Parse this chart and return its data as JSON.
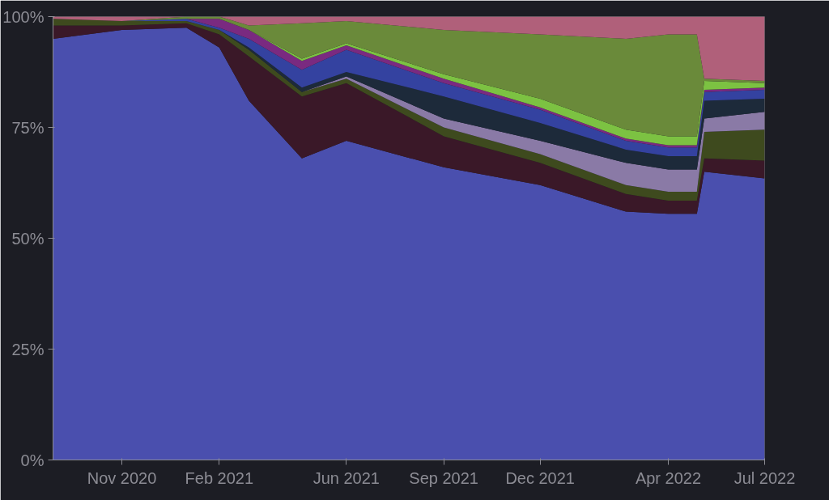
{
  "chart_data": {
    "type": "area",
    "stacked": true,
    "x": [
      "2020-08-28",
      "2020-11-01",
      "2021-01-01",
      "2021-02-01",
      "2021-03-01",
      "2021-04-20",
      "2021-06-01",
      "2021-09-01",
      "2021-12-01",
      "2022-02-20",
      "2022-04-01",
      "2022-04-28",
      "2022-05-05",
      "2022-07-01"
    ],
    "xlim": [
      "2020-08-28",
      "2022-07-01"
    ],
    "xticks": [
      {
        "value": "2020-11-01",
        "label": "Nov 2020"
      },
      {
        "value": "2021-02-01",
        "label": "Feb 2021"
      },
      {
        "value": "2021-06-01",
        "label": "Jun 2021"
      },
      {
        "value": "2021-09-01",
        "label": "Sep 2021"
      },
      {
        "value": "2021-12-01",
        "label": "Dec 2021"
      },
      {
        "value": "2022-04-01",
        "label": "Apr 2022"
      },
      {
        "value": "2022-07-01",
        "label": "Jul 2022"
      }
    ],
    "ylim": [
      0,
      100
    ],
    "yticks": [
      {
        "value": 0,
        "label": "0%"
      },
      {
        "value": 25,
        "label": "25%"
      },
      {
        "value": 50,
        "label": "50%"
      },
      {
        "value": 75,
        "label": "75%"
      },
      {
        "value": 100,
        "label": "100%"
      }
    ],
    "series": [
      {
        "color": "#4a4fae",
        "values": [
          95,
          97,
          97.5,
          93,
          81,
          68,
          72,
          66,
          62,
          56,
          55.5,
          55.5,
          65,
          63.5
        ]
      },
      {
        "color": "#3a1828",
        "values": [
          3,
          1,
          1,
          3,
          10,
          14,
          13,
          7,
          5,
          4,
          3,
          3,
          3,
          4
        ]
      },
      {
        "color": "#3e4a1e",
        "values": [
          1.5,
          1,
          0.5,
          1,
          1.5,
          1,
          1,
          2,
          2,
          2,
          2,
          2,
          6,
          7
        ]
      },
      {
        "color": "#8a7aa6",
        "values": [
          0,
          0,
          0,
          0,
          0,
          0,
          0.5,
          2,
          3,
          5,
          5,
          5,
          3,
          4
        ]
      },
      {
        "color": "#1d2a3a",
        "values": [
          0,
          0,
          0,
          0,
          0.5,
          1,
          1,
          5,
          4,
          3,
          3,
          3,
          4,
          3
        ]
      },
      {
        "color": "#3442a0",
        "values": [
          0,
          0,
          0.5,
          0.5,
          2,
          4,
          5,
          3,
          3,
          2,
          2,
          2,
          2,
          2
        ]
      },
      {
        "color": "#7a2a80",
        "values": [
          0,
          0,
          0,
          2,
          2,
          2,
          1,
          1,
          0.5,
          0.5,
          0.5,
          0.5,
          0.5,
          0.5
        ]
      },
      {
        "color": "#7cc242",
        "values": [
          0,
          0,
          0,
          0,
          0,
          0.5,
          0.5,
          1,
          2,
          2,
          2,
          2,
          2,
          1
        ]
      },
      {
        "color": "#6a8a3a",
        "values": [
          0,
          0,
          0.5,
          0.5,
          1,
          8,
          5,
          10,
          14.5,
          20.5,
          23,
          23,
          0.5,
          0.5
        ]
      },
      {
        "color": "#b0607a",
        "values": [
          0.5,
          1,
          0,
          0,
          2,
          1.5,
          1,
          3,
          4,
          5,
          4,
          4,
          14,
          14.5
        ]
      }
    ]
  }
}
